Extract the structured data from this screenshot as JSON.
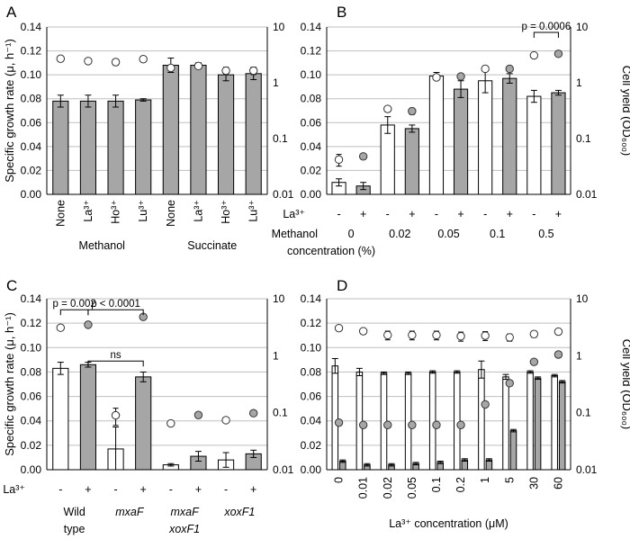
{
  "chart_data": [
    {
      "panel": "A",
      "type": "bar",
      "categories": [
        "None",
        "La³⁺",
        "Ho³⁺",
        "Lu³⁺",
        "None",
        "La³⁺",
        "Ho³⁺",
        "Lu³⁺"
      ],
      "groups": [
        {
          "label": "Methanol",
          "from": 0,
          "to": 3
        },
        {
          "label": "Succinate",
          "from": 4,
          "to": 7
        }
      ],
      "series": [
        {
          "name": "Specific growth rate",
          "axis": "left",
          "kind": "bar",
          "values": [
            0.078,
            0.078,
            0.078,
            0.079,
            0.108,
            0.108,
            0.1,
            0.101
          ],
          "errors": [
            0.005,
            0.005,
            0.005,
            0.001,
            0.006,
            0.002,
            0.005,
            0.005
          ],
          "fills": [
            "#a6a6a6",
            "#a6a6a6",
            "#a6a6a6",
            "#a6a6a6",
            "#a6a6a6",
            "#a6a6a6",
            "#a6a6a6",
            "#a6a6a6"
          ]
        },
        {
          "name": "Cell yield",
          "axis": "right",
          "kind": "marker",
          "values": [
            2.7,
            2.45,
            2.35,
            2.65,
            1.85,
            2.0,
            1.65,
            1.65
          ],
          "errors": [
            0.2,
            0.2,
            0.3,
            0.2,
            0.2,
            0.15,
            0.25,
            0.25
          ],
          "fills": [
            "#ffffff",
            "#ffffff",
            "#ffffff",
            "#ffffff",
            "#ffffff",
            "#ffffff",
            "#ffffff",
            "#ffffff"
          ]
        }
      ],
      "ylabel_left": "Specific growth rate (μ, h⁻¹)",
      "ylabel_right": "",
      "ylim": [
        0,
        0.14
      ],
      "y_ticks": [
        "0.00",
        "0.02",
        "0.04",
        "0.06",
        "0.08",
        "0.10",
        "0.12",
        "0.14"
      ],
      "y2_ticks": [
        "0.01",
        "0.1",
        "1",
        "10"
      ],
      "y2lim": [
        0.01,
        10
      ]
    },
    {
      "panel": "B",
      "type": "bar",
      "categories": [
        "-",
        "+",
        "-",
        "+",
        "-",
        "+",
        "-",
        "+",
        "-",
        "+"
      ],
      "row_label": "La³⁺",
      "sub_title": "Methanol",
      "sub_title2": "concentration (%)",
      "sub_groups": [
        "0",
        "0.02",
        "0.05",
        "0.1",
        "0.5"
      ],
      "series": [
        {
          "name": "Specific growth rate",
          "axis": "left",
          "kind": "bar",
          "values": [
            0.01,
            0.007,
            0.058,
            0.055,
            0.099,
            0.088,
            0.095,
            0.097,
            0.082,
            0.085
          ],
          "errors": [
            0.003,
            0.003,
            0.007,
            0.003,
            0.003,
            0.007,
            0.01,
            0.004,
            0.005,
            0.002
          ],
          "fills": [
            "#ffffff",
            "#a6a6a6",
            "#ffffff",
            "#a6a6a6",
            "#ffffff",
            "#a6a6a6",
            "#ffffff",
            "#a6a6a6",
            "#ffffff",
            "#a6a6a6"
          ]
        },
        {
          "name": "Cell yield",
          "axis": "right",
          "kind": "marker",
          "values": [
            0.042,
            0.048,
            0.34,
            0.31,
            1.25,
            1.3,
            1.78,
            1.78,
            3.1,
            3.3
          ],
          "errors": [
            0.01,
            0.005,
            0.04,
            0.04,
            0.1,
            0.1,
            0.1,
            0.1,
            0.15,
            0.15
          ],
          "fills": [
            "#ffffff",
            "#a6a6a6",
            "#ffffff",
            "#a6a6a6",
            "#ffffff",
            "#a6a6a6",
            "#ffffff",
            "#a6a6a6",
            "#ffffff",
            "#a6a6a6"
          ]
        }
      ],
      "ylabel_left": "",
      "ylabel_right": "Cell yield (OD₆₀₀)",
      "ylim": [
        0,
        0.14
      ],
      "y_ticks": [
        "0.00",
        "0.02",
        "0.04",
        "0.06",
        "0.08",
        "0.10",
        "0.12",
        "0.14"
      ],
      "y2_ticks": [
        "0.01",
        "0.1",
        "1",
        "10"
      ],
      "y2lim": [
        0.01,
        10
      ],
      "annotations": [
        {
          "text": "p = 0.0006",
          "from": 8,
          "to": 9
        }
      ]
    },
    {
      "panel": "C",
      "type": "bar",
      "categories": [
        "-",
        "+",
        "-",
        "+",
        "-",
        "+",
        "-",
        "+"
      ],
      "row_label": "La³⁺",
      "strains": [
        {
          "lines": [
            "Wild",
            "type"
          ],
          "italic": false
        },
        {
          "lines": [
            "mxaF"
          ],
          "italic": true
        },
        {
          "lines": [
            "mxaF",
            "xoxF1"
          ],
          "italic": true
        },
        {
          "lines": [
            "xoxF1"
          ],
          "italic": true
        }
      ],
      "series": [
        {
          "name": "Specific growth rate",
          "axis": "left",
          "kind": "bar",
          "values": [
            0.083,
            0.086,
            0.017,
            0.076,
            0.004,
            0.011,
            0.008,
            0.013
          ],
          "errors": [
            0.005,
            0.002,
            0.018,
            0.004,
            0.001,
            0.004,
            0.006,
            0.003
          ],
          "fills": [
            "#ffffff",
            "#a6a6a6",
            "#ffffff",
            "#a6a6a6",
            "#ffffff",
            "#a6a6a6",
            "#ffffff",
            "#a6a6a6"
          ]
        },
        {
          "name": "Cell yield",
          "axis": "right",
          "kind": "marker",
          "values": [
            3.1,
            3.5,
            0.09,
            4.8,
            0.065,
            0.091,
            0.074,
            0.098
          ],
          "errors": [
            0.1,
            0.1,
            0.03,
            0.1,
            0.006,
            0.005,
            0.005,
            0.005
          ],
          "fills": [
            "#ffffff",
            "#a6a6a6",
            "#ffffff",
            "#a6a6a6",
            "#ffffff",
            "#a6a6a6",
            "#ffffff",
            "#a6a6a6"
          ]
        }
      ],
      "ylabel_left": "Specific growth rate (μ, h⁻¹)",
      "ylabel_right": "",
      "ylim": [
        0,
        0.14
      ],
      "y_ticks": [
        "0.00",
        "0.02",
        "0.04",
        "0.06",
        "0.08",
        "0.10",
        "0.12",
        "0.14"
      ],
      "y2_ticks": [
        "0.01",
        "0.1",
        "1",
        "10"
      ],
      "y2lim": [
        0.01,
        10
      ],
      "annotations": [
        {
          "text": "p = 0.002",
          "from": 0,
          "to": 1,
          "level": 0.131
        },
        {
          "text": "p < 0.0001",
          "from": 1,
          "to": 3,
          "level": 0.131
        },
        {
          "text": "ns",
          "from": 1,
          "to": 3,
          "level": 0.089
        }
      ]
    },
    {
      "panel": "D",
      "type": "bar",
      "categories": [
        "0",
        "0.01",
        "0.02",
        "0.05",
        "0.1",
        "0.2",
        "1",
        "5",
        "30",
        "60"
      ],
      "xlabel": "La³⁺ concentration (μM)",
      "series": [
        {
          "name": "Specific growth rate (white)",
          "axis": "left",
          "kind": "bar",
          "values": [
            0.085,
            0.08,
            0.079,
            0.079,
            0.08,
            0.08,
            0.082,
            0.076,
            0.08,
            0.077
          ],
          "errors": [
            0.006,
            0.003,
            0.001,
            0.001,
            0.001,
            0.001,
            0.007,
            0.002,
            0.001,
            0.001
          ],
          "fills": [
            "#ffffff",
            "#ffffff",
            "#ffffff",
            "#ffffff",
            "#ffffff",
            "#ffffff",
            "#ffffff",
            "#ffffff",
            "#ffffff",
            "#ffffff"
          ]
        },
        {
          "name": "Specific growth rate (gray)",
          "axis": "left",
          "kind": "bar",
          "values": [
            0.007,
            0.004,
            0.004,
            0.005,
            0.006,
            0.008,
            0.008,
            0.032,
            0.075,
            0.072
          ],
          "errors": [
            0.001,
            0.001,
            0.001,
            0.001,
            0.001,
            0.001,
            0.001,
            0.001,
            0.001,
            0.001
          ],
          "fills": [
            "#a6a6a6",
            "#a6a6a6",
            "#a6a6a6",
            "#a6a6a6",
            "#a6a6a6",
            "#a6a6a6",
            "#a6a6a6",
            "#a6a6a6",
            "#a6a6a6",
            "#a6a6a6"
          ]
        },
        {
          "name": "Cell yield (white)",
          "axis": "right",
          "kind": "marker",
          "values": [
            3.05,
            2.7,
            2.3,
            2.3,
            2.3,
            2.2,
            2.25,
            2.1,
            2.4,
            2.65
          ],
          "errors": [
            0.2,
            0.3,
            0.4,
            0.4,
            0.4,
            0.4,
            0.4,
            0.3,
            0.3,
            0.3
          ],
          "fills": [
            "#ffffff",
            "#ffffff",
            "#ffffff",
            "#ffffff",
            "#ffffff",
            "#ffffff",
            "#ffffff",
            "#ffffff",
            "#ffffff",
            "#ffffff"
          ]
        },
        {
          "name": "Cell yield (gray)",
          "axis": "right",
          "kind": "marker",
          "values": [
            0.067,
            0.061,
            0.061,
            0.061,
            0.061,
            0.061,
            0.14,
            0.33,
            0.78,
            1.05
          ],
          "errors": [
            0.001,
            0.001,
            0.001,
            0.001,
            0.001,
            0.001,
            0.001,
            0.001,
            0.001,
            0.001
          ],
          "fills": [
            "#a6a6a6",
            "#a6a6a6",
            "#a6a6a6",
            "#a6a6a6",
            "#a6a6a6",
            "#a6a6a6",
            "#a6a6a6",
            "#a6a6a6",
            "#a6a6a6",
            "#a6a6a6"
          ]
        }
      ],
      "ylabel_left": "",
      "ylabel_right": "Cell yield (OD₆₀₀)",
      "ylim": [
        0,
        0.14
      ],
      "y_ticks": [
        "0.00",
        "0.02",
        "0.04",
        "0.06",
        "0.08",
        "0.10",
        "0.12",
        "0.14"
      ],
      "y2_ticks": [
        "0.01",
        "0.1",
        "1",
        "10"
      ],
      "y2lim": [
        0.01,
        10
      ]
    }
  ],
  "colors": {
    "gray_bar": "#a6a6a6",
    "gray_marker": "#a6a6a6",
    "grid": "#bfbfbf",
    "axis": "#000000"
  }
}
